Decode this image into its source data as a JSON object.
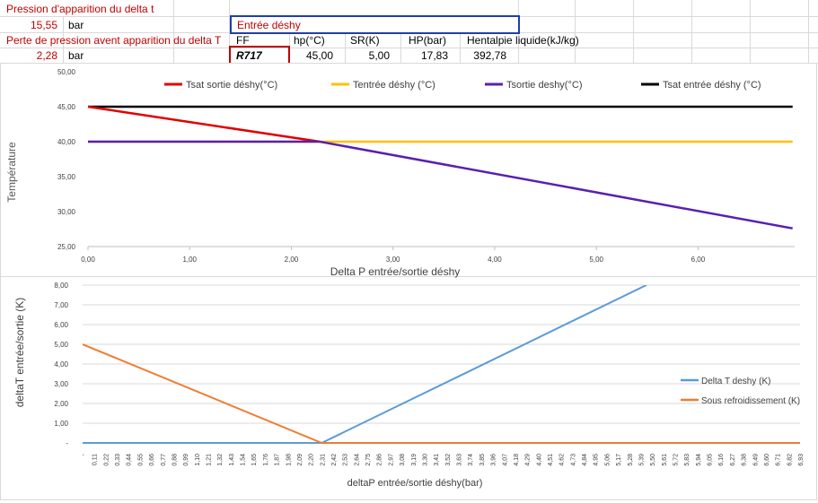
{
  "sheet": {
    "label_pressure": "Pression d'apparition du delta t",
    "pressure_value": "15,55",
    "pressure_unit": "bar",
    "label_loss": "Perte de pression avent apparition du delta T",
    "loss_value": "2,28",
    "loss_unit": "bar",
    "entree_title": "Entrée déshy",
    "headers": [
      "FF",
      "hp(°C)",
      "SR(K)",
      "HP(bar)",
      "Hentalpie liquide(kJ/kg)"
    ],
    "values": [
      "R717",
      "45,00",
      "5,00",
      "17,83",
      "392,78"
    ]
  },
  "colors": {
    "red": "#e00000",
    "yellow": "#ffc000",
    "purple": "#5a1fb0",
    "black": "#000000",
    "blue": "#5b9bd5",
    "orange": "#ed7d31"
  },
  "chart_data": [
    {
      "type": "line",
      "ylabel": "Température",
      "xlabel": "Delta P entrée/sortie déshy",
      "xlim": [
        0,
        6.95
      ],
      "ylim": [
        25,
        50
      ],
      "xticks": [
        "0,00",
        "1,00",
        "2,00",
        "3,00",
        "4,00",
        "5,00",
        "6,00"
      ],
      "yticks": [
        "25,00",
        "30,00",
        "35,00",
        "40,00",
        "45,00",
        "50,00"
      ],
      "legend_position": "top",
      "series": [
        {
          "name": "Tsat sortie déshy(°C)",
          "color": "#e00000",
          "x": [
            0,
            2.28
          ],
          "y": [
            45,
            40
          ]
        },
        {
          "name": "Tentrée déshy (°C)",
          "color": "#ffc000",
          "x": [
            0,
            6.93
          ],
          "y": [
            40,
            40
          ]
        },
        {
          "name": "Tsortie deshy(°C)",
          "color": "#5a1fb0",
          "x": [
            0,
            2.28,
            6.93
          ],
          "y": [
            40,
            40,
            27.6
          ]
        },
        {
          "name": "Tsat entrée déshy (°C)",
          "color": "#000000",
          "x": [
            0,
            6.93
          ],
          "y": [
            45,
            45
          ]
        }
      ]
    },
    {
      "type": "line",
      "ylabel": "deltaT entrée/sortie (K)",
      "xlabel": "deltaP entrée/sortie déshy(bar)",
      "ylim": [
        0,
        8
      ],
      "yticks": [
        "-",
        "1,00",
        "2,00",
        "3,00",
        "4,00",
        "5,00",
        "6,00",
        "7,00",
        "8,00"
      ],
      "categories": [
        "-",
        "0,11",
        "0,22",
        "0,33",
        "0,44",
        "0,55",
        "0,66",
        "0,77",
        "0,88",
        "0,99",
        "1,10",
        "1,21",
        "1,32",
        "1,43",
        "1,54",
        "1,65",
        "1,76",
        "1,87",
        "1,98",
        "2,09",
        "2,20",
        "2,31",
        "2,42",
        "2,53",
        "2,64",
        "2,75",
        "2,86",
        "2,97",
        "3,08",
        "3,19",
        "3,30",
        "3,41",
        "3,52",
        "3,63",
        "3,74",
        "3,85",
        "3,96",
        "4,07",
        "4,18",
        "4,29",
        "4,40",
        "4,51",
        "4,62",
        "4,73",
        "4,84",
        "4,95",
        "5,06",
        "5,17",
        "5,28",
        "5,39",
        "5,50",
        "5,61",
        "5,72",
        "5,83",
        "5,94",
        "6,05",
        "6,16",
        "6,27",
        "6,38",
        "6,49",
        "6,60",
        "6,71",
        "6,82",
        "6,93"
      ],
      "legend_position": "right",
      "series": [
        {
          "name": "Delta T deshy (K)",
          "color": "#5b9bd5",
          "points": [
            [
              0,
              0
            ],
            [
              21,
              0
            ],
            [
              49.5,
              8
            ]
          ]
        },
        {
          "name": "Sous refroidissement (K)",
          "color": "#ed7d31",
          "points": [
            [
              0,
              5
            ],
            [
              21,
              0
            ],
            [
              63,
              0
            ]
          ]
        }
      ]
    }
  ]
}
